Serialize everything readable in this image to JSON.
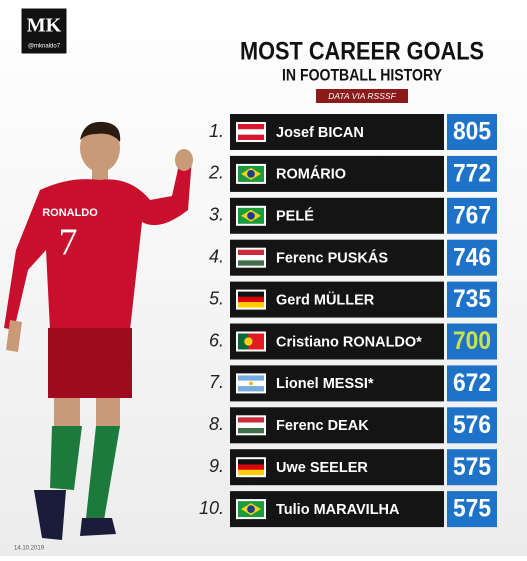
{
  "logo": {
    "mark": "MK",
    "handle": "@mknaldo7"
  },
  "header": {
    "title": "MOST CAREER GOALS",
    "subtitle": "IN FOOTBALL HISTORY",
    "source": "DATA VIA RSSSF"
  },
  "player": {
    "shirt_name": "RONALDO",
    "shirt_number": "7"
  },
  "rows": [
    {
      "rank": "1.",
      "name": "Josef BICAN",
      "goals": 805,
      "color": "#ffffff"
    },
    {
      "rank": "2.",
      "name": "ROMÁRIO",
      "goals": 772,
      "color": "#ffffff"
    },
    {
      "rank": "3.",
      "name": "PELÉ",
      "goals": 767,
      "color": "#ffffff"
    },
    {
      "rank": "4.",
      "name": "Ferenc PUSKÁS",
      "goals": 746,
      "color": "#ffffff"
    },
    {
      "rank": "5.",
      "name": "Gerd MÜLLER",
      "goals": 735,
      "color": "#ffffff"
    },
    {
      "rank": "6.",
      "name": "Cristiano RONALDO*",
      "goals": 700,
      "color": "#c9e24a"
    },
    {
      "rank": "7.",
      "name": "Lionel MESSI*",
      "goals": 672,
      "color": "#ffffff"
    },
    {
      "rank": "8.",
      "name": "Ferenc DEAK",
      "goals": 576,
      "color": "#ffffff"
    },
    {
      "rank": "9.",
      "name": "Uwe SEELER",
      "goals": 575,
      "color": "#ffffff"
    },
    {
      "rank": "10.",
      "name": "Tulio MARAVILHA",
      "goals": 575,
      "color": "#ffffff"
    }
  ],
  "footer": {
    "date": "14.10.2019"
  }
}
